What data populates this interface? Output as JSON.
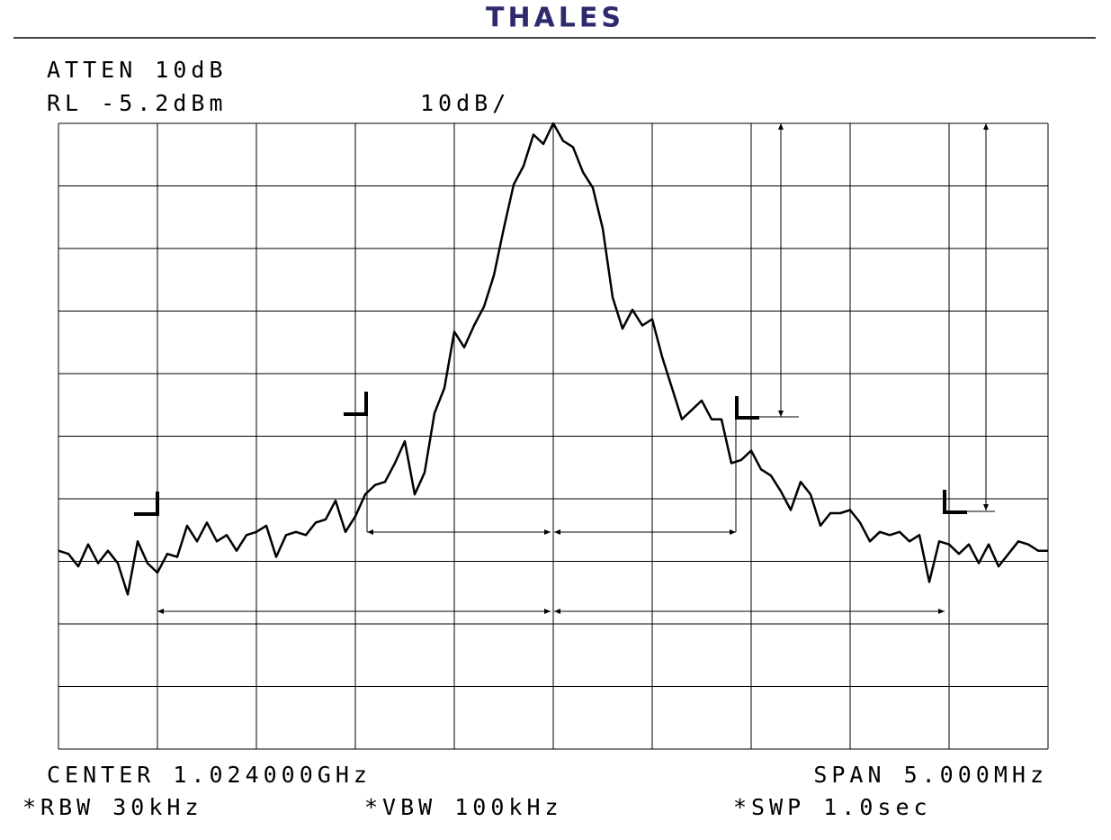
{
  "header": {
    "logo": "THALES"
  },
  "chart_data": {
    "type": "line",
    "atten": "ATTEN 10dB",
    "ref_level": "RL -5.2dBm",
    "scale": "10dB/",
    "center": "CENTER 1.024000GHz",
    "span": "SPAN 5.000MHz",
    "rbw": "*RBW 30kHz",
    "vbw": "*VBW 100kHz",
    "sweep": "*SWP 1.0sec",
    "color": "#000000",
    "grid": true,
    "xlim": [
      1021.5,
      1026.5
    ],
    "xticks": [
      1021.5,
      1022,
      1022.5,
      1023,
      1023.5,
      1024,
      1024.5,
      1025,
      1025.5,
      1026,
      1026.5
    ],
    "ylim": [
      -105.2,
      -5.2
    ],
    "yticks": [
      -105.2,
      -95.2,
      -85.2,
      -75.2,
      -65.2,
      -55.2,
      -45.2,
      -35.2,
      -25.2,
      -15.2,
      -5.2
    ],
    "x": [
      1021.5,
      1021.55,
      1021.6,
      1021.65,
      1021.7,
      1021.75,
      1021.8,
      1021.85,
      1021.9,
      1021.95,
      1022,
      1022.05,
      1022.1,
      1022.15,
      1022.2,
      1022.25,
      1022.3,
      1022.35,
      1022.4,
      1022.45,
      1022.5,
      1022.55,
      1022.6,
      1022.65,
      1022.7,
      1022.75,
      1022.8,
      1022.85,
      1022.9,
      1022.95,
      1023,
      1023.05,
      1023.1,
      1023.15,
      1023.2,
      1023.25,
      1023.3,
      1023.35,
      1023.4,
      1023.45,
      1023.5,
      1023.55,
      1023.6,
      1023.65,
      1023.7,
      1023.75,
      1023.8,
      1023.85,
      1023.9,
      1023.95,
      1024,
      1024.05,
      1024.1,
      1024.15,
      1024.2,
      1024.25,
      1024.3,
      1024.35,
      1024.4,
      1024.45,
      1024.5,
      1024.55,
      1024.6,
      1024.65,
      1024.7,
      1024.75,
      1024.8,
      1024.85,
      1024.9,
      1024.95,
      1025,
      1025.05,
      1025.1,
      1025.15,
      1025.2,
      1025.25,
      1025.3,
      1025.35,
      1025.4,
      1025.45,
      1025.5,
      1025.55,
      1025.6,
      1025.65,
      1025.7,
      1025.75,
      1025.8,
      1025.85,
      1025.9,
      1025.95,
      1026,
      1026.05,
      1026.1,
      1026.15,
      1026.2,
      1026.25,
      1026.3,
      1026.35,
      1026.4,
      1026.45,
      1026.5
    ],
    "values": [
      -73.5,
      -74,
      -76,
      -72.5,
      -75.5,
      -73.5,
      -75.5,
      -80.5,
      -72,
      -75.5,
      -77,
      -74,
      -74.5,
      -69.5,
      -72,
      -69,
      -72,
      -71,
      -73.5,
      -71,
      -70.5,
      -69.5,
      -74.5,
      -71,
      -70.5,
      -71,
      -69,
      -68.5,
      -65.5,
      -70.5,
      -68,
      -64.5,
      -63,
      -62.5,
      -59.5,
      -56,
      -64.5,
      -61,
      -51.5,
      -47.5,
      -38.5,
      -41,
      -37.5,
      -34.5,
      -29.5,
      -22,
      -15,
      -12,
      -7,
      -8.5,
      -5.2,
      -8,
      -9,
      -13,
      -15.5,
      -22,
      -33,
      -38,
      -35,
      -37.5,
      -36.5,
      -42.5,
      -47.5,
      -52.5,
      -51,
      -49.5,
      -52.5,
      -52.5,
      -59.5,
      -59,
      -57.5,
      -60.5,
      -61.5,
      -64,
      -67,
      -62.5,
      -64.5,
      -69.5,
      -67.5,
      -67.5,
      -67,
      -69,
      -72,
      -70.5,
      -71,
      -70.5,
      -72,
      -71,
      -78.5,
      -72,
      -72.5,
      -74,
      -72.5,
      -75.5,
      -72.5,
      -76,
      -74,
      -72,
      -72.5,
      -73.5,
      -73.5
    ]
  }
}
